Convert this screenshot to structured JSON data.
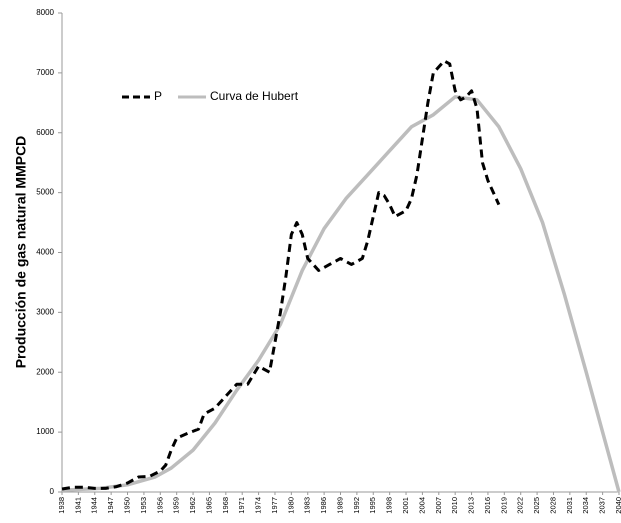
{
  "chart_data": {
    "type": "line",
    "y_label": "Producción de gas natural MMPCD",
    "xlim": [
      1938,
      2040
    ],
    "xticks": [
      1938,
      1941,
      1944,
      1947,
      1950,
      1953,
      1956,
      1959,
      1962,
      1965,
      1968,
      1971,
      1974,
      1977,
      1980,
      1983,
      1986,
      1989,
      1992,
      1995,
      1998,
      2001,
      2004,
      2007,
      2010,
      2013,
      2016,
      2019,
      2022,
      2025,
      2028,
      2031,
      2034,
      2037,
      2040
    ],
    "ylim": [
      0,
      8000
    ],
    "yticks": [
      0,
      1000,
      2000,
      3000,
      4000,
      5000,
      6000,
      7000,
      8000
    ],
    "legend": "top-left",
    "series": [
      {
        "name": "P",
        "color": "#000000",
        "dashed": true,
        "x": [
          1938,
          1940,
          1942,
          1944,
          1946,
          1948,
          1950,
          1952,
          1954,
          1956,
          1957,
          1958,
          1959,
          1961,
          1963,
          1964,
          1966,
          1968,
          1970,
          1972,
          1974,
          1976,
          1977,
          1978,
          1979,
          1980,
          1981,
          1982,
          1983,
          1985,
          1987,
          1989,
          1991,
          1993,
          1994,
          1995,
          1996,
          1997,
          1998,
          1999,
          2001,
          2002,
          2003,
          2004,
          2005,
          2006,
          2007,
          2008,
          2009,
          2010,
          2011,
          2012,
          2013,
          2014,
          2015,
          2016,
          2018
        ],
        "values": [
          50,
          80,
          80,
          60,
          60,
          90,
          150,
          250,
          260,
          350,
          450,
          700,
          900,
          980,
          1050,
          1300,
          1400,
          1600,
          1800,
          1800,
          2100,
          2000,
          2500,
          3000,
          3600,
          4300,
          4500,
          4300,
          3900,
          3700,
          3800,
          3900,
          3800,
          3900,
          4200,
          4600,
          5000,
          4950,
          4800,
          4600,
          4700,
          4900,
          5300,
          5900,
          6500,
          7000,
          7100,
          7200,
          7150,
          6700,
          6550,
          6600,
          6700,
          6400,
          5500,
          5200,
          4800
        ]
      },
      {
        "name": "Curva de Hubert",
        "color": "#bdbdbd",
        "dashed": false,
        "x": [
          1938,
          1945,
          1950,
          1955,
          1958,
          1962,
          1966,
          1970,
          1974,
          1978,
          1982,
          1986,
          1990,
          1994,
          1998,
          2002,
          2006,
          2010,
          2014,
          2018,
          2022,
          2026,
          2030,
          2034,
          2037,
          2040
        ],
        "values": [
          30,
          60,
          120,
          250,
          400,
          700,
          1150,
          1700,
          2200,
          2800,
          3700,
          4400,
          4900,
          5300,
          5700,
          6100,
          6300,
          6600,
          6550,
          6100,
          5400,
          4500,
          3300,
          2000,
          1000,
          0
        ]
      }
    ]
  }
}
